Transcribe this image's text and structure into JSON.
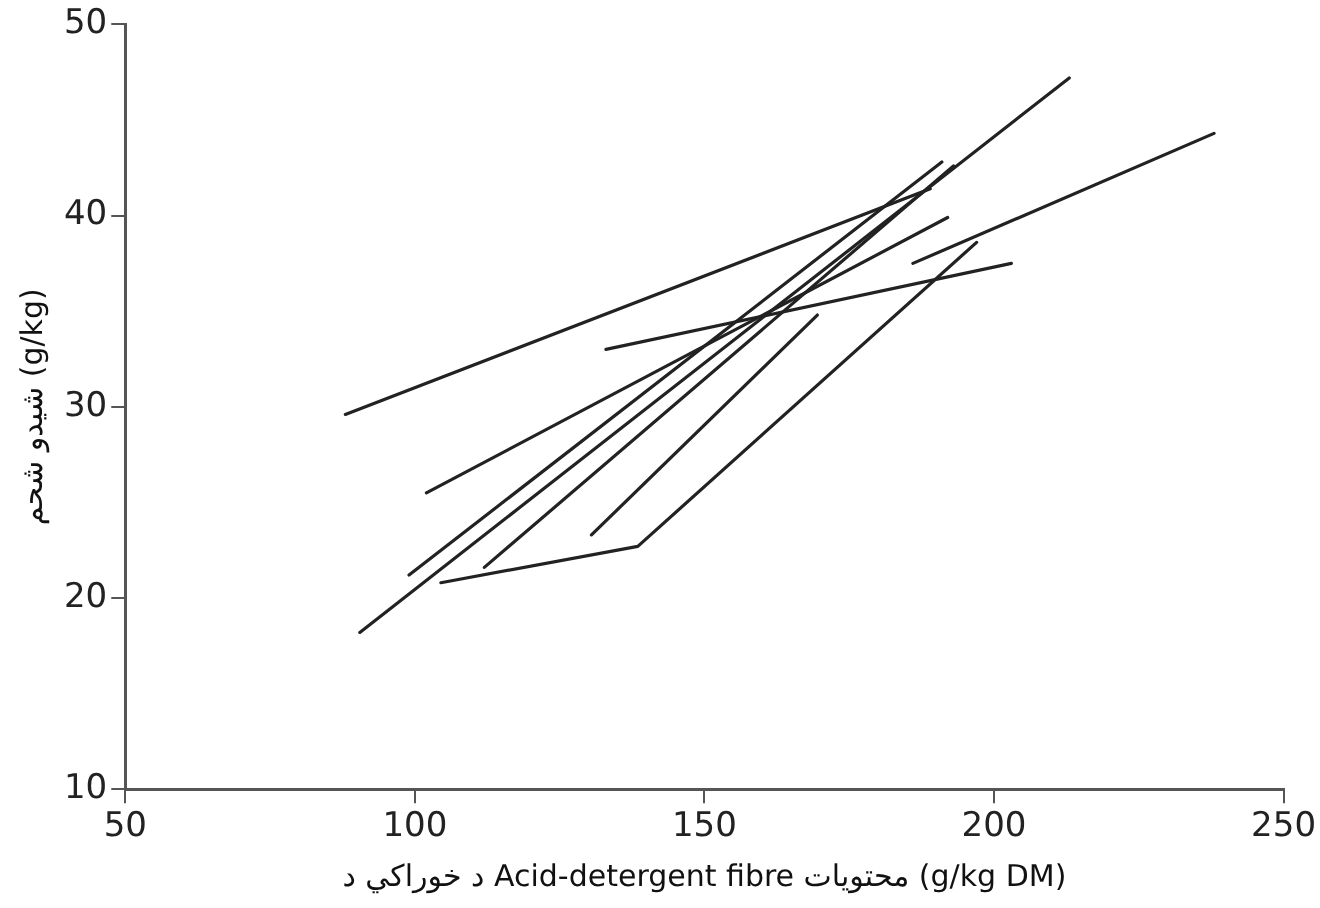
{
  "chart_data": {
    "type": "line",
    "xlabel": "د خوراکي د Acid-detergent fibre محتويات (g/kg DM)",
    "ylabel": "شيدو شحم (g/kg)",
    "xlim": [
      50,
      250
    ],
    "xticks": [
      50,
      100,
      150,
      200,
      250
    ],
    "ylim": [
      10,
      50
    ],
    "yticks": [
      10,
      20,
      30,
      40,
      50
    ],
    "grid": false,
    "legend": false,
    "marker": "none",
    "line_style": "solid",
    "series": [
      {
        "color": "#222222",
        "x": [
          88,
          189
        ],
        "values": [
          29.6,
          41.4
        ]
      },
      {
        "color": "#222222",
        "x": [
          102,
          192
        ],
        "values": [
          25.5,
          39.9
        ]
      },
      {
        "color": "#222222",
        "x": [
          133,
          203
        ],
        "values": [
          33.0,
          37.5
        ]
      },
      {
        "color": "#222222",
        "x": [
          186,
          238
        ],
        "values": [
          37.5,
          44.3
        ]
      },
      {
        "color": "#222222",
        "x": [
          90.5,
          213
        ],
        "values": [
          18.2,
          47.2
        ]
      },
      {
        "color": "#222222",
        "x": [
          99,
          191
        ],
        "values": [
          21.2,
          42.8
        ]
      },
      {
        "color": "#222222",
        "x": [
          112,
          193
        ],
        "values": [
          21.6,
          42.6
        ]
      },
      {
        "color": "#222222",
        "x": [
          104.5,
          138.5,
          197
        ],
        "values": [
          20.8,
          22.7,
          38.6
        ]
      },
      {
        "color": "#222222",
        "x": [
          130.5,
          169.5
        ],
        "values": [
          23.3,
          34.8
        ]
      }
    ]
  }
}
